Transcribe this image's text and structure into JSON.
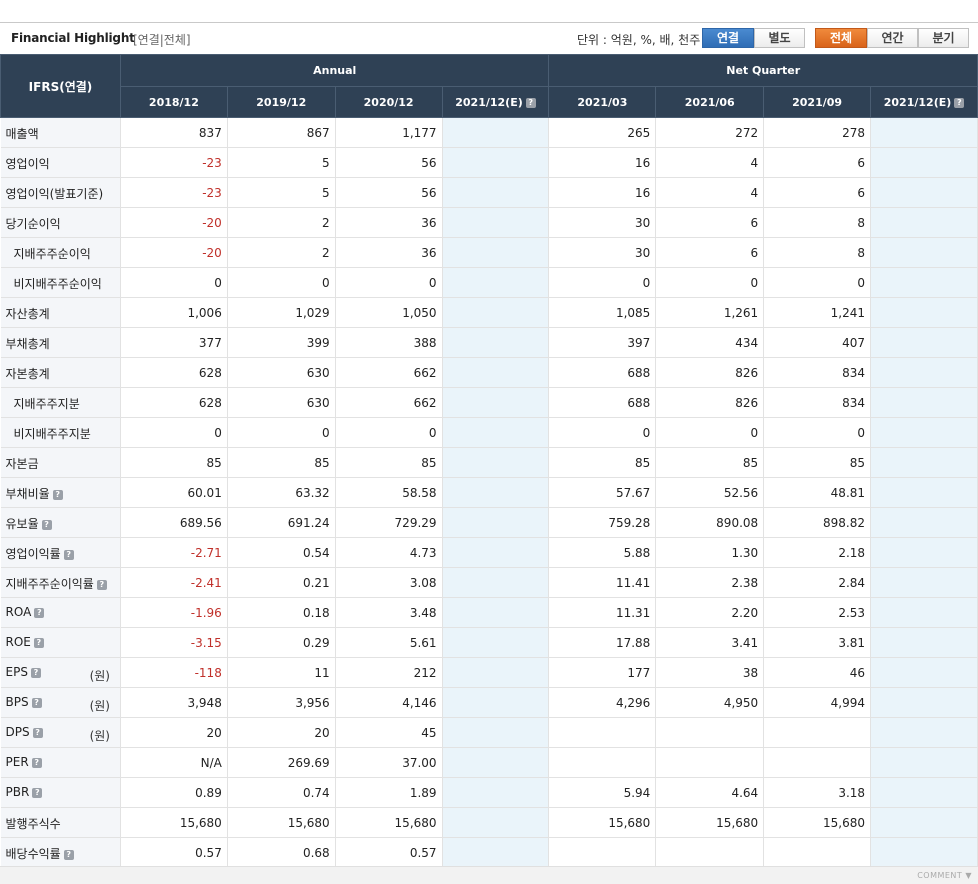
{
  "header": {
    "title": "Financial Highlight",
    "subtitle": "[연결|전체]",
    "unit": "단위 : 억원, %, 배, 천주",
    "buttons": {
      "consolidated": "연결",
      "separate": "별도",
      "all": "전체",
      "annual": "연간",
      "quarter": "분기"
    }
  },
  "table": {
    "corner": "IFRS(연결)",
    "group_annual": "Annual",
    "group_quarter": "Net Quarter",
    "columns": [
      "2018/12",
      "2019/12",
      "2020/12",
      "2021/12(E)",
      "2021/03",
      "2021/06",
      "2021/09",
      "2021/12(E)"
    ],
    "rows": [
      {
        "label": "매출액",
        "indent": false,
        "help": false,
        "suffix": "",
        "values": [
          "837",
          "867",
          "1,177",
          "",
          "265",
          "272",
          "278",
          ""
        ]
      },
      {
        "label": "영업이익",
        "indent": false,
        "help": false,
        "suffix": "",
        "values": [
          "-23",
          "5",
          "56",
          "",
          "16",
          "4",
          "6",
          ""
        ]
      },
      {
        "label": "영업이익(발표기준)",
        "indent": false,
        "help": false,
        "suffix": "",
        "values": [
          "-23",
          "5",
          "56",
          "",
          "16",
          "4",
          "6",
          ""
        ]
      },
      {
        "label": "당기순이익",
        "indent": false,
        "help": false,
        "suffix": "",
        "values": [
          "-20",
          "2",
          "36",
          "",
          "30",
          "6",
          "8",
          ""
        ]
      },
      {
        "label": "지배주주순이익",
        "indent": true,
        "help": false,
        "suffix": "",
        "values": [
          "-20",
          "2",
          "36",
          "",
          "30",
          "6",
          "8",
          ""
        ]
      },
      {
        "label": "비지배주주순이익",
        "indent": true,
        "help": false,
        "suffix": "",
        "values": [
          "0",
          "0",
          "0",
          "",
          "0",
          "0",
          "0",
          ""
        ]
      },
      {
        "label": "자산총계",
        "indent": false,
        "help": false,
        "suffix": "",
        "values": [
          "1,006",
          "1,029",
          "1,050",
          "",
          "1,085",
          "1,261",
          "1,241",
          ""
        ]
      },
      {
        "label": "부채총계",
        "indent": false,
        "help": false,
        "suffix": "",
        "values": [
          "377",
          "399",
          "388",
          "",
          "397",
          "434",
          "407",
          ""
        ]
      },
      {
        "label": "자본총계",
        "indent": false,
        "help": false,
        "suffix": "",
        "values": [
          "628",
          "630",
          "662",
          "",
          "688",
          "826",
          "834",
          ""
        ]
      },
      {
        "label": "지배주주지분",
        "indent": true,
        "help": false,
        "suffix": "",
        "values": [
          "628",
          "630",
          "662",
          "",
          "688",
          "826",
          "834",
          ""
        ]
      },
      {
        "label": "비지배주주지분",
        "indent": true,
        "help": false,
        "suffix": "",
        "values": [
          "0",
          "0",
          "0",
          "",
          "0",
          "0",
          "0",
          ""
        ]
      },
      {
        "label": "자본금",
        "indent": false,
        "help": false,
        "suffix": "",
        "values": [
          "85",
          "85",
          "85",
          "",
          "85",
          "85",
          "85",
          ""
        ]
      },
      {
        "label": "부채비율",
        "indent": false,
        "help": true,
        "suffix": "",
        "values": [
          "60.01",
          "63.32",
          "58.58",
          "",
          "57.67",
          "52.56",
          "48.81",
          ""
        ]
      },
      {
        "label": "유보율",
        "indent": false,
        "help": true,
        "suffix": "",
        "values": [
          "689.56",
          "691.24",
          "729.29",
          "",
          "759.28",
          "890.08",
          "898.82",
          ""
        ]
      },
      {
        "label": "영업이익률",
        "indent": false,
        "help": true,
        "suffix": "",
        "values": [
          "-2.71",
          "0.54",
          "4.73",
          "",
          "5.88",
          "1.30",
          "2.18",
          ""
        ]
      },
      {
        "label": "지배주주순이익률",
        "indent": false,
        "help": true,
        "suffix": "",
        "values": [
          "-2.41",
          "0.21",
          "3.08",
          "",
          "11.41",
          "2.38",
          "2.84",
          ""
        ]
      },
      {
        "label": "ROA",
        "indent": false,
        "help": true,
        "suffix": "",
        "values": [
          "-1.96",
          "0.18",
          "3.48",
          "",
          "11.31",
          "2.20",
          "2.53",
          ""
        ]
      },
      {
        "label": "ROE",
        "indent": false,
        "help": true,
        "suffix": "",
        "values": [
          "-3.15",
          "0.29",
          "5.61",
          "",
          "17.88",
          "3.41",
          "3.81",
          ""
        ]
      },
      {
        "label": "EPS",
        "indent": false,
        "help": true,
        "suffix": "(원)",
        "values": [
          "-118",
          "11",
          "212",
          "",
          "177",
          "38",
          "46",
          ""
        ]
      },
      {
        "label": "BPS",
        "indent": false,
        "help": true,
        "suffix": "(원)",
        "values": [
          "3,948",
          "3,956",
          "4,146",
          "",
          "4,296",
          "4,950",
          "4,994",
          ""
        ]
      },
      {
        "label": "DPS",
        "indent": false,
        "help": true,
        "suffix": "(원)",
        "values": [
          "20",
          "20",
          "45",
          "",
          "",
          "",
          "",
          ""
        ]
      },
      {
        "label": "PER",
        "indent": false,
        "help": true,
        "suffix": "",
        "values": [
          "N/A",
          "269.69",
          "37.00",
          "",
          "",
          "",
          "",
          ""
        ]
      },
      {
        "label": "PBR",
        "indent": false,
        "help": true,
        "suffix": "",
        "values": [
          "0.89",
          "0.74",
          "1.89",
          "",
          "5.94",
          "4.64",
          "3.18",
          ""
        ]
      },
      {
        "label": "발행주식수",
        "indent": false,
        "help": false,
        "suffix": "",
        "values": [
          "15,680",
          "15,680",
          "15,680",
          "",
          "15,680",
          "15,680",
          "15,680",
          ""
        ]
      },
      {
        "label": "배당수익률",
        "indent": false,
        "help": true,
        "suffix": "",
        "values": [
          "0.57",
          "0.68",
          "0.57",
          "",
          "",
          "",
          "",
          ""
        ]
      }
    ]
  },
  "footer": {
    "comment": "COMMENT ▼"
  }
}
